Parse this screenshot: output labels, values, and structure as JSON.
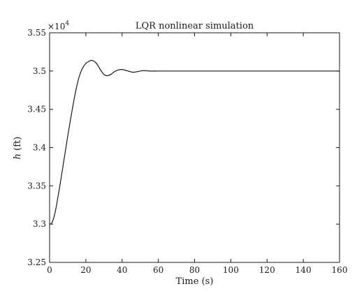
{
  "chart_data": {
    "type": "line",
    "title": "LQR nonlinear simulation",
    "xlabel": "Time (s)",
    "ylabel_italic": "h",
    "ylabel_rest": " (ft)",
    "y_multiplier_base": "×10",
    "y_multiplier_exp": "4",
    "xlim": [
      0,
      160
    ],
    "ylim": [
      3.25,
      3.55
    ],
    "xticks": [
      0,
      20,
      40,
      60,
      80,
      100,
      120,
      140,
      160
    ],
    "xtick_labels": [
      "0",
      "20",
      "40",
      "60",
      "80",
      "100",
      "120",
      "140",
      "160"
    ],
    "yticks": [
      3.25,
      3.3,
      3.35,
      3.4,
      3.45,
      3.5,
      3.55
    ],
    "ytick_labels": [
      "3.25",
      "3.3",
      "3.35",
      "3.4",
      "3.45",
      "3.5",
      "3.55"
    ],
    "grid": false,
    "series": [
      {
        "color": "#1a1a1a",
        "x": [
          0,
          1,
          2,
          3,
          4,
          6,
          8,
          10,
          12,
          14,
          16,
          18,
          20,
          22,
          23,
          24,
          25,
          26,
          28,
          30,
          32,
          34,
          36,
          38,
          40,
          42,
          44,
          46,
          48,
          50,
          52,
          54,
          56,
          60,
          65,
          70,
          80,
          100,
          120,
          140,
          160
        ],
        "y": [
          3.3,
          3.301,
          3.306,
          3.315,
          3.327,
          3.355,
          3.385,
          3.415,
          3.443,
          3.469,
          3.49,
          3.503,
          3.51,
          3.513,
          3.514,
          3.5135,
          3.512,
          3.5095,
          3.502,
          3.4955,
          3.494,
          3.496,
          3.4995,
          3.5015,
          3.502,
          3.501,
          3.4995,
          3.4985,
          3.499,
          3.5,
          3.5005,
          3.5003,
          3.5,
          3.5,
          3.5,
          3.5,
          3.5,
          3.5,
          3.5,
          3.5,
          3.5
        ]
      }
    ]
  }
}
